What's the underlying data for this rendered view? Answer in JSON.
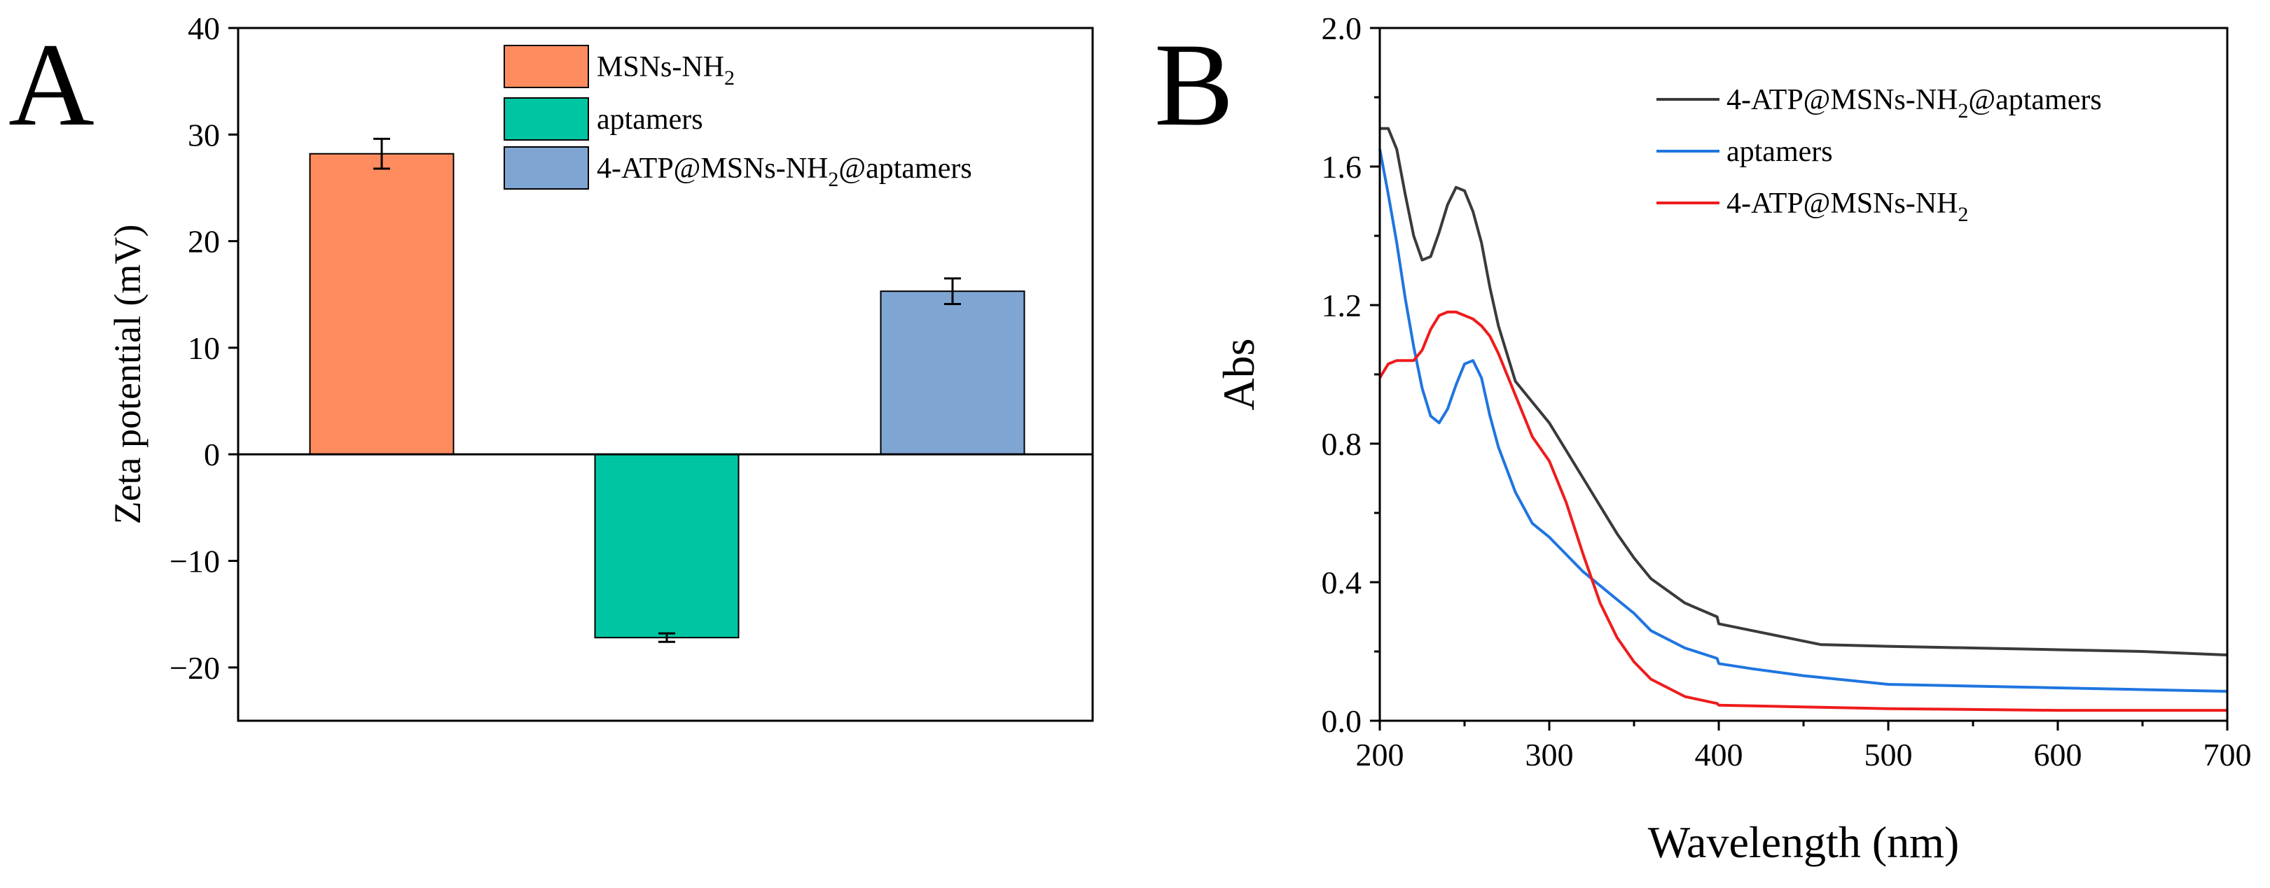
{
  "chart_data": [
    {
      "panel": "A",
      "type": "bar",
      "title": "",
      "xlabel": "",
      "ylabel": "Zeta potential (mV)",
      "ylim": [
        -25,
        40
      ],
      "yticks": [
        "40",
        "30",
        "20",
        "10",
        "0",
        "−10",
        "−20"
      ],
      "ytick_values": [
        40,
        30,
        20,
        10,
        0,
        -10,
        -20
      ],
      "grid": false,
      "legend_position": "top-center",
      "bars": [
        {
          "name": "MSNs-NH2",
          "label_main": "MSNs-NH",
          "label_sub": "2",
          "label_tail": "",
          "value": 28.2,
          "error": 1.4,
          "color": "#FF8C5F"
        },
        {
          "name": "aptamers",
          "label_main": "aptamers",
          "label_sub": "",
          "label_tail": "",
          "value": -17.2,
          "error": 0.4,
          "color": "#00C5A3"
        },
        {
          "name": "4-ATP@MSNs-NH2@aptamers",
          "label_main": "4-ATP@MSNs-NH",
          "label_sub": "2",
          "label_tail": "@aptamers",
          "value": 15.3,
          "error": 1.2,
          "color": "#7FA5D3"
        }
      ]
    },
    {
      "panel": "B",
      "type": "line",
      "title": "",
      "xlabel": "Wavelength (nm)",
      "ylabel": "Abs",
      "xlim": [
        200,
        700
      ],
      "ylim": [
        0.0,
        2.0
      ],
      "xticks": [
        "200",
        "300",
        "400",
        "500",
        "600",
        "700"
      ],
      "xtick_values": [
        200,
        300,
        400,
        500,
        600,
        700
      ],
      "yticks": [
        "0.0",
        "0.4",
        "0.8",
        "1.2",
        "1.6",
        "2.0"
      ],
      "ytick_values": [
        0.0,
        0.4,
        0.8,
        1.2,
        1.6,
        2.0
      ],
      "grid": false,
      "legend_position": "top-right",
      "series": [
        {
          "name": "4-ATP@MSNs-NH2@aptamers",
          "label_main": "4-ATP@MSNs-NH",
          "label_sub": "2",
          "label_tail": "@aptamers",
          "color": "#3a3a3a",
          "x": [
            200,
            205,
            210,
            215,
            220,
            225,
            230,
            235,
            240,
            245,
            250,
            255,
            260,
            265,
            270,
            280,
            290,
            300,
            320,
            340,
            350,
            360,
            380,
            399,
            400,
            420,
            440,
            460,
            500,
            550,
            600,
            650,
            700
          ],
          "y": [
            1.71,
            1.71,
            1.65,
            1.52,
            1.4,
            1.33,
            1.34,
            1.41,
            1.49,
            1.54,
            1.53,
            1.47,
            1.38,
            1.25,
            1.14,
            0.98,
            0.92,
            0.86,
            0.7,
            0.54,
            0.47,
            0.41,
            0.34,
            0.3,
            0.28,
            0.26,
            0.24,
            0.22,
            0.215,
            0.21,
            0.205,
            0.2,
            0.19
          ]
        },
        {
          "name": "aptamers",
          "label_main": "aptamers",
          "label_sub": "",
          "label_tail": "",
          "color": "#1f75e0",
          "x": [
            200,
            205,
            210,
            215,
            220,
            225,
            230,
            235,
            240,
            245,
            250,
            255,
            260,
            265,
            270,
            280,
            290,
            300,
            320,
            340,
            350,
            360,
            380,
            399,
            400,
            420,
            450,
            500,
            550,
            600,
            650,
            700
          ],
          "y": [
            1.65,
            1.52,
            1.38,
            1.22,
            1.08,
            0.96,
            0.88,
            0.86,
            0.9,
            0.97,
            1.03,
            1.04,
            0.99,
            0.88,
            0.79,
            0.66,
            0.57,
            0.53,
            0.43,
            0.35,
            0.31,
            0.26,
            0.21,
            0.18,
            0.165,
            0.15,
            0.13,
            0.105,
            0.1,
            0.095,
            0.09,
            0.085
          ]
        },
        {
          "name": "4-ATP@MSNs-NH2",
          "label_main": "4-ATP@MSNs-NH",
          "label_sub": "2",
          "label_tail": "",
          "color": "#ee1c1c",
          "x": [
            200,
            205,
            210,
            215,
            220,
            225,
            230,
            235,
            240,
            245,
            250,
            255,
            260,
            265,
            270,
            280,
            290,
            300,
            310,
            320,
            330,
            340,
            350,
            360,
            380,
            399,
            400,
            450,
            500,
            600,
            700
          ],
          "y": [
            0.99,
            1.03,
            1.04,
            1.04,
            1.04,
            1.07,
            1.13,
            1.17,
            1.18,
            1.18,
            1.17,
            1.16,
            1.14,
            1.11,
            1.06,
            0.94,
            0.82,
            0.75,
            0.63,
            0.48,
            0.34,
            0.24,
            0.17,
            0.12,
            0.07,
            0.05,
            0.045,
            0.04,
            0.035,
            0.03,
            0.03
          ]
        }
      ]
    }
  ],
  "panels": {
    "a": "A",
    "b": "B"
  }
}
